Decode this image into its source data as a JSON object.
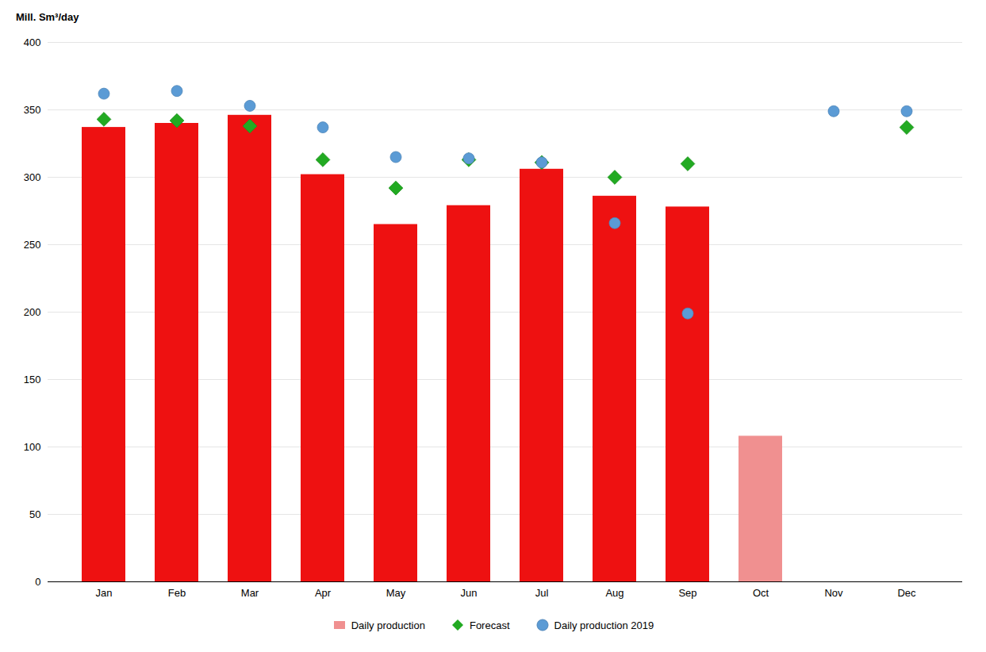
{
  "chart_data": {
    "type": "bar",
    "ylabel": "Mill. Sm³/day",
    "categories": [
      "Jan",
      "Feb",
      "Mar",
      "Apr",
      "May",
      "Jun",
      "Jul",
      "Aug",
      "Sep",
      "Oct",
      "Nov",
      "Dec"
    ],
    "series": [
      {
        "name": "Daily production",
        "type": "bar",
        "color": "#f09090",
        "colors": [
          "#ee1111",
          "#ee1111",
          "#ee1111",
          "#ee1111",
          "#ee1111",
          "#ee1111",
          "#ee1111",
          "#ee1111",
          "#ee1111",
          "#f09090",
          "#ee1111",
          "#ee1111"
        ],
        "values": [
          337,
          340,
          346,
          302,
          265,
          279,
          306,
          286,
          278,
          108,
          null,
          null
        ]
      },
      {
        "name": "Forecast",
        "type": "scatter",
        "marker": "diamond",
        "color": "#22aa22",
        "values": [
          343,
          342,
          338,
          313,
          292,
          313,
          311,
          300,
          310,
          null,
          null,
          337
        ]
      },
      {
        "name": "Daily production 2019",
        "type": "scatter",
        "marker": "circle",
        "color": "#5b9bd5",
        "values": [
          362,
          364,
          353,
          337,
          315,
          314,
          311,
          266,
          199,
          null,
          349,
          349
        ]
      }
    ],
    "ylim": [
      0,
      400
    ],
    "yticks": [
      0,
      50,
      100,
      150,
      200,
      250,
      300,
      350,
      400
    ],
    "grid": true,
    "legend": "bottom"
  }
}
